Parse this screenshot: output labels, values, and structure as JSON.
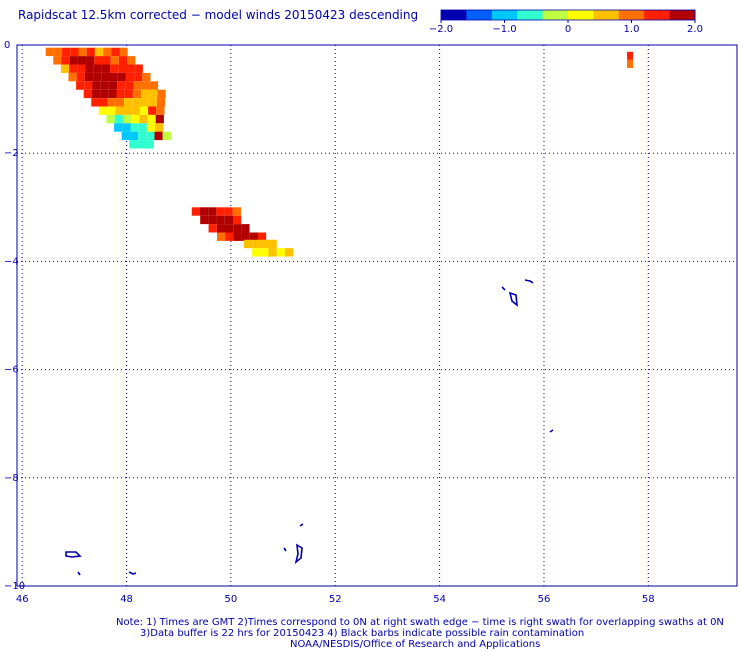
{
  "title": "Rapidscat 12.5km corrected − model winds 20150423 descending",
  "colorbar": {
    "tick_labels": [
      "−2.0",
      "−1.0",
      "0",
      "1.0",
      "2.0"
    ],
    "tick_values": [
      -2.0,
      -1.0,
      0,
      1.0,
      2.0
    ],
    "colors": [
      "#0000b0",
      "#0060ff",
      "#00c8ff",
      "#30ffd0",
      "#c0ff40",
      "#ffff00",
      "#ffc000",
      "#ff7000",
      "#ff2000",
      "#b00000"
    ]
  },
  "notes": {
    "line1": "Note: 1) Times are GMT 2)Times correspond to 0N at right swath edge − time is right swath for overlapping swaths at 0N",
    "line2": "3)Data buffer is 22 hrs for 20150423 4) Black barbs indicate possible rain contamination",
    "line3": "NOAA/NESDIS/Office of Research and Applications"
  },
  "chart_data": {
    "type": "heatmap",
    "title": "Rapidscat 12.5km corrected − model winds 20150423 descending",
    "xlabel": "",
    "ylabel": "",
    "xlim": [
      45.9,
      59.7
    ],
    "ylim": [
      -10,
      0
    ],
    "x_ticks": [
      46,
      48,
      50,
      52,
      54,
      56,
      58
    ],
    "y_ticks": [
      0,
      -2,
      -4,
      -6,
      -8,
      -10
    ],
    "x_tick_labels": [
      "46",
      "48",
      "50",
      "52",
      "54",
      "56",
      "58"
    ],
    "y_tick_labels": [
      "0",
      "−2",
      "−4",
      "−6",
      "−8",
      "−10"
    ],
    "grid": true,
    "color_scale": [
      -2.0,
      2.0
    ],
    "swath_left": [
      [
        46.6,
        46.8,
        47.0,
        47.2,
        47.4,
        47.6,
        47.8,
        48.0,
        48.2,
        48.4,
        48.6,
        48.8
      ],
      [
        1.0,
        0.9,
        1.3,
        1.5,
        1.1,
        1.4,
        0.5,
        0.8,
        1.2,
        1.0
      ],
      [
        1.1,
        1.3,
        1.6,
        1.8,
        1.6,
        1.4,
        1.2,
        1.0,
        1.3,
        1.1
      ],
      [
        0.6,
        1.2,
        1.5,
        1.7,
        1.9,
        1.6,
        1.5,
        1.3,
        1.2,
        1.4
      ],
      [
        0.9,
        1.3,
        1.6,
        1.8,
        1.9,
        1.8,
        1.6,
        1.4,
        1.2,
        0.9
      ],
      [
        1.2,
        1.4,
        1.8,
        1.9,
        1.8,
        1.5,
        1.3,
        1.1,
        0.8,
        1.0
      ],
      [
        1.5,
        1.7,
        1.9,
        1.6,
        1.4,
        1.2,
        0.9,
        0.7,
        0.6,
        0.8
      ],
      [
        1.2,
        1.4,
        1.1,
        0.8,
        0.6,
        0.4,
        0.5,
        0.7,
        1.0
      ],
      [
        0.0,
        0.2,
        0.4,
        0.7,
        0.5,
        0.3,
        1.2,
        1.0
      ],
      [
        -0.4,
        -0.6,
        -0.3,
        0.1,
        0.4,
        0.3,
        1.6
      ],
      [
        -1.0,
        -0.9,
        -0.7,
        -0.5,
        0.0,
        0.6
      ],
      [
        -1.2,
        -1.0,
        -0.8,
        -0.6,
        2.0,
        -0.3
      ],
      [
        -0.8,
        -0.5,
        -0.7
      ]
    ],
    "swath_right": [
      [
        1.4,
        1.8,
        1.7,
        1.5,
        1.3,
        1.1
      ],
      [
        1.6,
        1.7,
        1.9,
        1.8,
        1.5
      ],
      [
        1.2,
        1.6,
        2.0,
        1.9,
        1.7
      ],
      [
        0.8,
        1.3,
        1.7,
        1.8,
        1.6,
        1.4
      ]
    ],
    "isolated_cells": [
      {
        "lon": 57.65,
        "lat": -0.2,
        "value": 1.2
      },
      {
        "lon": 57.65,
        "lat": -0.35,
        "value": 0.9
      }
    ]
  }
}
